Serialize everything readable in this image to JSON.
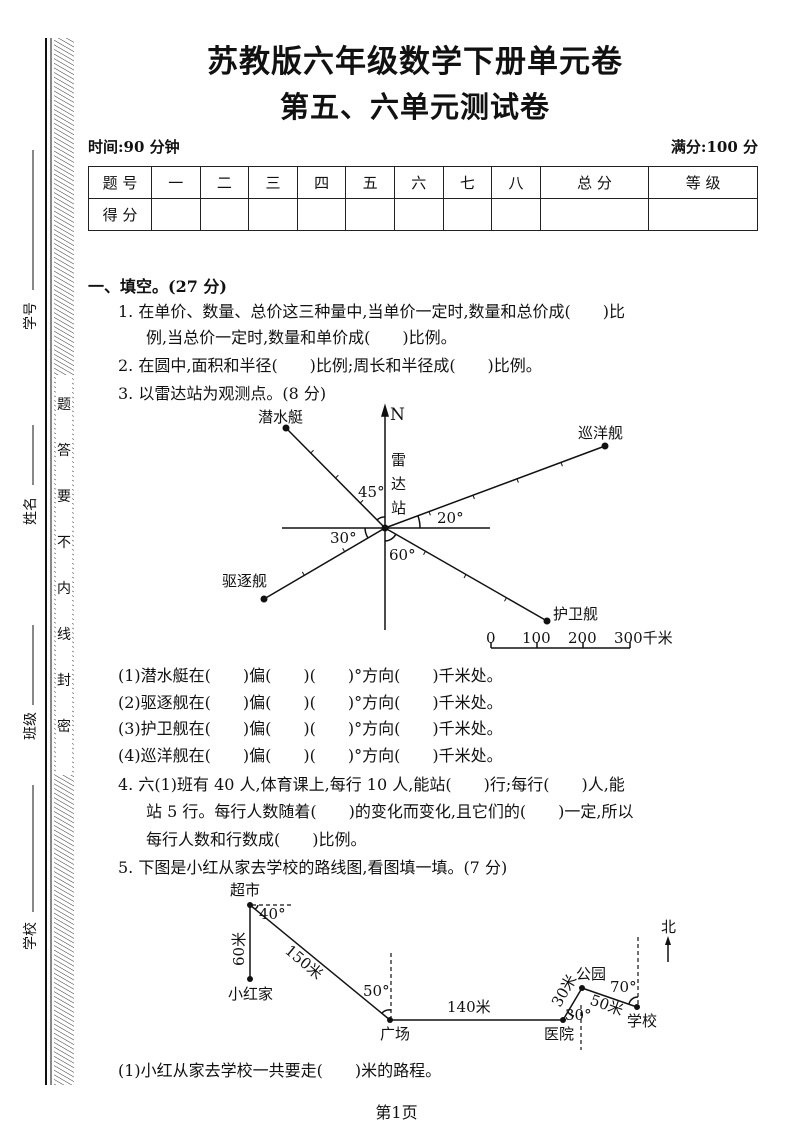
{
  "header": {
    "title": "苏教版六年级数学下册单元卷",
    "subtitle": "第五、六单元测试卷",
    "time": "时间:90 分钟",
    "full_score": "满分:100 分"
  },
  "score_table": {
    "row1": [
      "题 号",
      "一",
      "二",
      "三",
      "四",
      "五",
      "六",
      "七",
      "八",
      "总 分",
      "等 级"
    ],
    "row2_label": "得 分"
  },
  "margin": {
    "student_id": "学号",
    "name": "姓名",
    "class": "班级",
    "school": "学校",
    "seal_text": [
      "密",
      "封",
      "线",
      "内",
      "不",
      "要",
      "答",
      "题"
    ]
  },
  "section1": {
    "heading": "一、填空。(27 分)",
    "q1_line1": "1.  在单价、数量、总价这三种量中,当单价一定时,数量和总价成(　　)比",
    "q1_line2": "例,当总价一定时,数量和单价成(　　)比例。",
    "q2": "2.  在圆中,面积和半径(　　)比例;周长和半径成(　　)比例。",
    "q3": "3.  以雷达站为观测点。(8 分)",
    "q3_items": [
      "(1)潜水艇在(　　)偏(　　)(　　)°方向(　　)千米处。",
      "(2)驱逐舰在(　　)偏(　　)(　　)°方向(　　)千米处。",
      "(3)护卫舰在(　　)偏(　　)(　　)°方向(　　)千米处。",
      "(4)巡洋舰在(　　)偏(　　)(　　)°方向(　　)千米处。"
    ],
    "q4_line1": "4.  六(1)班有 40 人,体育课上,每行 10 人,能站(　　)行;每行(　　)人,能",
    "q4_line2": "站 5 行。每行人数随着(　　)的变化而变化,且它们的(　　)一定,所以",
    "q4_line3": "每行人数和行数成(　　)比例。",
    "q5": "5.  下图是小红从家去学校的路线图,看图填一填。(7 分)",
    "q5_items": [
      "(1)小红从家去学校一共要走(　　)米的路程。"
    ]
  },
  "radar_diagram": {
    "north": "N",
    "station": [
      "雷",
      "达",
      "站"
    ],
    "ships": {
      "submarine": "潜水艇",
      "cruiser": "巡洋舰",
      "destroyer": "驱逐舰",
      "frigate": "护卫舰"
    },
    "angles": {
      "submarine": "45°",
      "cruiser": "20°",
      "destroyer": "30°",
      "frigate": "60°"
    },
    "scale": [
      "0",
      "100",
      "200",
      "300千米"
    ]
  },
  "route_diagram": {
    "places": {
      "supermarket": "超市",
      "home": "小红家",
      "square": "广场",
      "hospital": "医院",
      "park": "公园",
      "school": "学校"
    },
    "north": "北",
    "distances": {
      "home_supermarket": "60米",
      "supermarket_square": "150米",
      "square_hospital": "140米",
      "hospital_park": "30米",
      "park_school": "50米"
    },
    "angles": {
      "supermarket": "40°",
      "square": "50°",
      "hospital": "30°",
      "school": "70°"
    }
  },
  "footer": {
    "page": "第1页"
  }
}
